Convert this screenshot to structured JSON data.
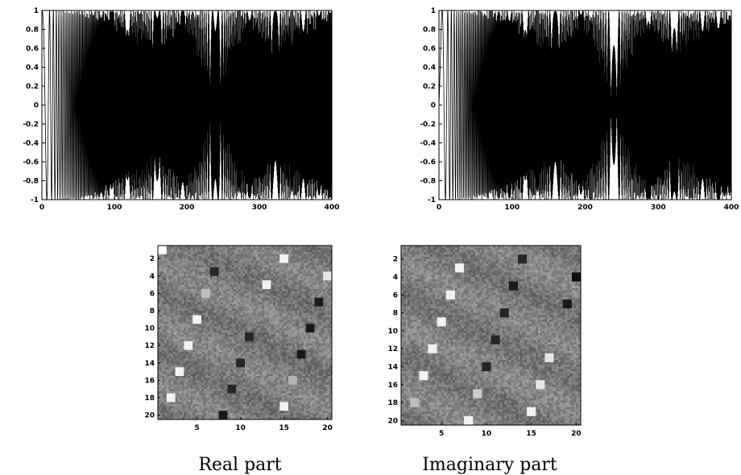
{
  "chart_data": [
    {
      "id": "wave-left",
      "type": "line",
      "title": "",
      "xlabel": "",
      "ylabel": "",
      "xlim": [
        0,
        400
      ],
      "ylim": [
        -1,
        1
      ],
      "x_ticks": [
        "0",
        "100",
        "200",
        "300",
        "400"
      ],
      "y_ticks": [
        "1",
        "0.8",
        "0.6",
        "0.4",
        "0.2",
        "0",
        "-0.2",
        "-0.4",
        "-0.6",
        "-0.8",
        "-1"
      ],
      "grid": false,
      "legend": "none",
      "series": [
        {
          "description_free": true,
          "sampling": "cos(phase(n)), n = 0..400",
          "envelope_bursts": [
            [
              40,
              95
            ],
            [
              170,
              240
            ],
            [
              300,
              380
            ]
          ],
          "quiet_regions": [
            [
              100,
              165
            ],
            [
              245,
              300
            ]
          ]
        }
      ]
    },
    {
      "id": "wave-right",
      "type": "line",
      "title": "",
      "xlabel": "",
      "ylabel": "",
      "xlim": [
        0,
        400
      ],
      "ylim": [
        -1,
        1
      ],
      "x_ticks": [
        "0",
        "100",
        "200",
        "300",
        "400"
      ],
      "y_ticks": [
        "1",
        "0.8",
        "0.6",
        "0.4",
        "0.2",
        "0",
        "-0.2",
        "-0.4",
        "-0.6",
        "-0.8",
        "-1"
      ],
      "grid": false,
      "legend": "none",
      "series": [
        {
          "sampling": "sin(phase(n)), n = 0..400",
          "envelope_bursts": [
            [
              40,
              95
            ],
            [
              170,
              240
            ],
            [
              300,
              380
            ]
          ],
          "quiet_regions": [
            [
              100,
              165
            ],
            [
              245,
              300
            ]
          ]
        }
      ]
    },
    {
      "id": "heatmap-real",
      "type": "heatmap",
      "caption": "Real part",
      "rows": 20,
      "cols": 20,
      "x_ticks": [
        "5",
        "10",
        "15",
        "20"
      ],
      "x_tick_values": [
        5,
        10,
        15,
        20
      ],
      "y_ticks": [
        "2",
        "4",
        "6",
        "8",
        "10",
        "12",
        "14",
        "16",
        "18",
        "20"
      ],
      "y_tick_values": [
        2,
        4,
        6,
        8,
        10,
        12,
        14,
        16,
        18,
        20
      ],
      "highlights": [
        {
          "col": 1,
          "row": 1,
          "v": 1.0
        },
        {
          "col": 15,
          "row": 2,
          "v": 0.95
        },
        {
          "col": 7,
          "row": 3.5,
          "v": 0.15
        },
        {
          "col": 20,
          "row": 4,
          "v": 0.9
        },
        {
          "col": 13,
          "row": 5,
          "v": 0.95
        },
        {
          "col": 6,
          "row": 6,
          "v": 0.75
        },
        {
          "col": 19,
          "row": 7,
          "v": 0.1
        },
        {
          "col": 5,
          "row": 9,
          "v": 0.95
        },
        {
          "col": 18,
          "row": 10,
          "v": 0.1
        },
        {
          "col": 11,
          "row": 11,
          "v": 0.15
        },
        {
          "col": 4,
          "row": 12,
          "v": 0.95
        },
        {
          "col": 17,
          "row": 13,
          "v": 0.1
        },
        {
          "col": 10,
          "row": 14,
          "v": 0.15
        },
        {
          "col": 3,
          "row": 15,
          "v": 0.95
        },
        {
          "col": 16,
          "row": 16,
          "v": 0.7
        },
        {
          "col": 9,
          "row": 17,
          "v": 0.15
        },
        {
          "col": 2,
          "row": 18,
          "v": 0.95
        },
        {
          "col": 15,
          "row": 19,
          "v": 0.95
        },
        {
          "col": 8,
          "row": 20,
          "v": 0.1
        }
      ]
    },
    {
      "id": "heatmap-imag",
      "type": "heatmap",
      "caption": "Imaginary part",
      "rows": 20,
      "cols": 20,
      "x_ticks": [
        "5",
        "10",
        "15",
        "20"
      ],
      "x_tick_values": [
        5,
        10,
        15,
        20
      ],
      "y_ticks": [
        "2",
        "4",
        "6",
        "8",
        "10",
        "12",
        "14",
        "16",
        "18",
        "20"
      ],
      "y_tick_values": [
        2,
        4,
        6,
        8,
        10,
        12,
        14,
        16,
        18,
        20
      ],
      "highlights": [
        {
          "col": 14,
          "row": 2,
          "v": 0.15
        },
        {
          "col": 7,
          "row": 3,
          "v": 0.95
        },
        {
          "col": 20,
          "row": 4,
          "v": 0.05
        },
        {
          "col": 13,
          "row": 5,
          "v": 0.1
        },
        {
          "col": 6,
          "row": 6,
          "v": 0.95
        },
        {
          "col": 19,
          "row": 7,
          "v": 0.1
        },
        {
          "col": 12,
          "row": 8,
          "v": 0.15
        },
        {
          "col": 5,
          "row": 9,
          "v": 0.95
        },
        {
          "col": 11,
          "row": 11,
          "v": 0.15
        },
        {
          "col": 4,
          "row": 12,
          "v": 0.95
        },
        {
          "col": 17,
          "row": 13,
          "v": 0.9
        },
        {
          "col": 10,
          "row": 14,
          "v": 0.15
        },
        {
          "col": 3,
          "row": 15,
          "v": 0.95
        },
        {
          "col": 16,
          "row": 16,
          "v": 0.9
        },
        {
          "col": 9,
          "row": 17,
          "v": 0.8
        },
        {
          "col": 2,
          "row": 18,
          "v": 0.75
        },
        {
          "col": 15,
          "row": 19,
          "v": 0.95
        },
        {
          "col": 8,
          "row": 20,
          "v": 0.95
        }
      ]
    }
  ],
  "palette": {
    "ink": "#000000",
    "background": "#ffffff",
    "heat_base": "#7a7a7a"
  }
}
